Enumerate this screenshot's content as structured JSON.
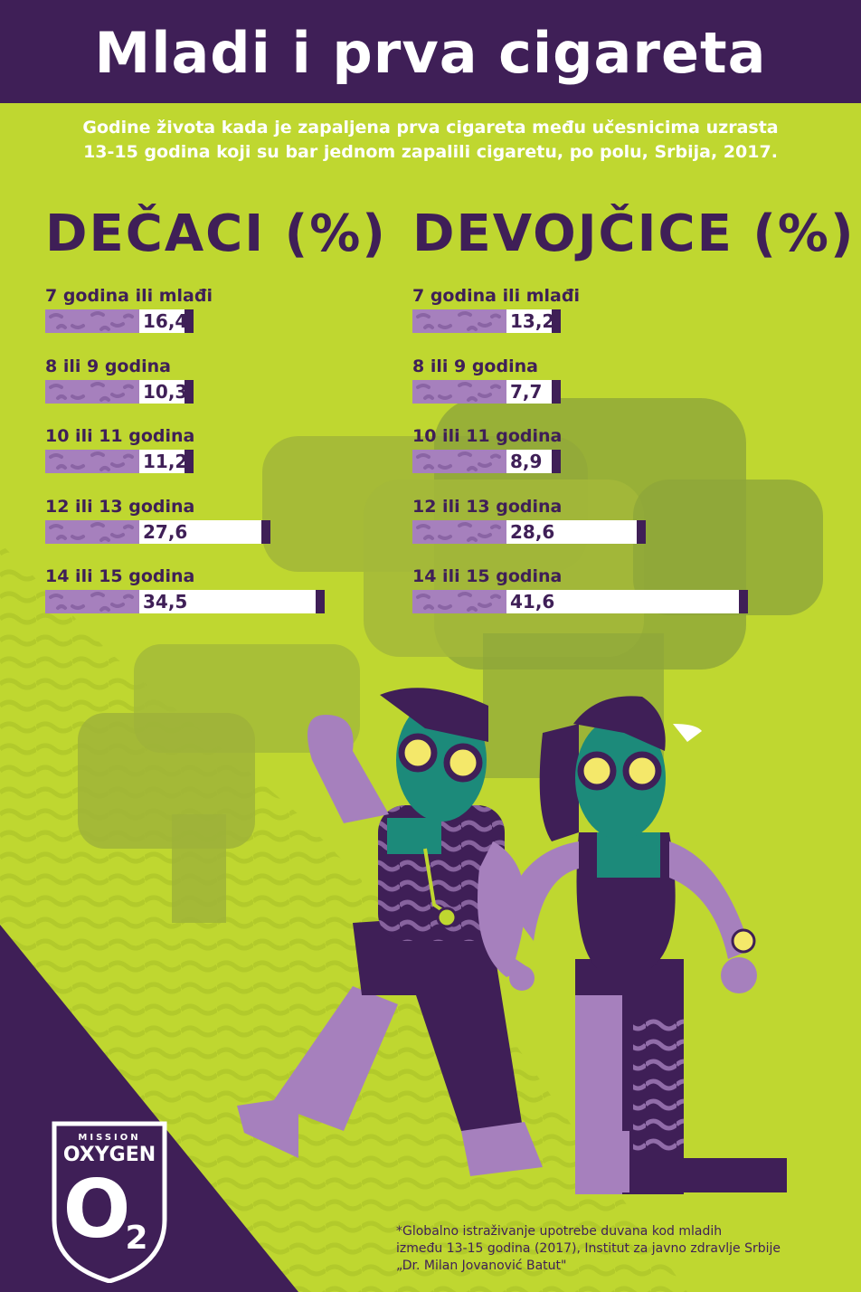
{
  "title": "Mladi i prva cigareta",
  "subtitle_line1": "Godine života kada je zapaljena prva cigareta među učesnicima uzrasta",
  "subtitle_line2": "13-15 godina koji su bar jednom zapalili cigaretu, po polu, Srbija, 2017.",
  "colors": {
    "dark_purple": "#3f1f57",
    "lime": "#bfd730",
    "lavender": "#a680bd",
    "olive": "#8fa63a",
    "teal": "#1c8a7a",
    "white": "#ffffff"
  },
  "chart_data": [
    {
      "type": "bar",
      "title": "DEČACI (%)",
      "categories": [
        "7 godina ili mlađi",
        "8 ili 9 godina",
        "10 ili 11 godina",
        "12 ili 13 godina",
        "14 ili 15 godina"
      ],
      "values": [
        16.4,
        10.3,
        11.2,
        27.6,
        34.5
      ],
      "value_labels": [
        "16,4",
        "10,3",
        "11,2",
        "27,6",
        "34,5"
      ],
      "orientation": "horizontal"
    },
    {
      "type": "bar",
      "title": "DEVOJČICE (%)",
      "categories": [
        "7 godina ili mlađi",
        "8 ili 9 godina",
        "10 ili 11 godina",
        "12 ili 13 godina",
        "14 ili 15 godina"
      ],
      "values": [
        13.2,
        7.7,
        8.9,
        28.6,
        41.6
      ],
      "value_labels": [
        "13,2",
        "7,7",
        "8,9",
        "28,6",
        "41,6"
      ],
      "orientation": "horizontal"
    }
  ],
  "logo": {
    "line1": "MISSION",
    "line2": "OXYGEN",
    "line3": "O",
    "line4": "2"
  },
  "footnote_line1": "*Globalno istraživanje upotrebe duvana kod mladih",
  "footnote_line2": "između 13-15 godina (2017), Institut za javno zdravlje Srbije",
  "footnote_line3": "„Dr. Milan Jovanović Batut\""
}
